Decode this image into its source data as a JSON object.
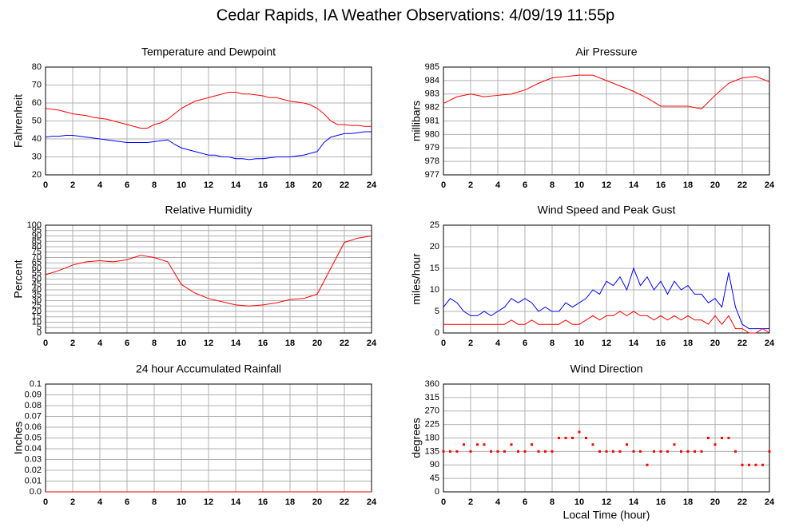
{
  "title": "Cedar Rapids, IA Weather Observations: 4/09/19 11:55p",
  "chart_data": [
    {
      "type": "line",
      "title": "Temperature and Dewpoint",
      "y_label": "Fahrenheit",
      "x": [
        0,
        0.5,
        1,
        1.5,
        2,
        2.5,
        3,
        3.5,
        4,
        4.5,
        5,
        5.5,
        6,
        6.5,
        7,
        7.5,
        8,
        8.5,
        9,
        9.5,
        10,
        10.5,
        11,
        11.5,
        12,
        12.5,
        13,
        13.5,
        14,
        14.5,
        15,
        15.5,
        16,
        16.5,
        17,
        17.5,
        18,
        18.5,
        19,
        19.5,
        20,
        20.5,
        21,
        21.5,
        22,
        22.5,
        23,
        23.5,
        24
      ],
      "series": [
        {
          "color": "#ff0000",
          "values": [
            57,
            56.5,
            56,
            55,
            54,
            53.5,
            53,
            52,
            51.5,
            51,
            50,
            49,
            48,
            47,
            46,
            46,
            48,
            49,
            51,
            54,
            57,
            59,
            61,
            62,
            63,
            64,
            65,
            66,
            66,
            65,
            65,
            64.5,
            64,
            63,
            63,
            62,
            61,
            60.5,
            60,
            59,
            57,
            54,
            50,
            48,
            48,
            47.5,
            47.5,
            47,
            47
          ]
        },
        {
          "color": "#0000ff",
          "values": [
            41,
            41.5,
            41.5,
            42,
            42,
            41.5,
            41,
            40.5,
            40,
            39.5,
            39,
            38.5,
            38,
            38,
            38,
            38,
            38.5,
            39,
            39.5,
            37,
            35,
            34,
            33,
            32,
            31,
            31,
            30,
            30,
            29,
            29,
            28.5,
            29,
            29,
            29.5,
            30,
            30,
            30,
            30.5,
            31,
            32,
            33,
            38,
            41,
            42,
            43,
            43,
            43.5,
            44,
            44
          ]
        }
      ],
      "xlim": [
        0,
        24
      ],
      "xticks": [
        0,
        2,
        4,
        6,
        8,
        10,
        12,
        14,
        16,
        18,
        20,
        22,
        24
      ],
      "ylim": [
        20,
        80
      ],
      "yticks": [
        20,
        30,
        40,
        50,
        60,
        70,
        80
      ],
      "grid": true
    },
    {
      "type": "line",
      "title": "Air Pressure",
      "y_label": "millibars",
      "x": [
        0,
        1,
        2,
        3,
        4,
        5,
        6,
        7,
        8,
        9,
        10,
        11,
        12,
        13,
        14,
        15,
        16,
        17,
        18,
        19,
        20,
        21,
        22,
        23,
        24
      ],
      "series": [
        {
          "color": "#ff0000",
          "values": [
            982.3,
            982.8,
            983,
            982.8,
            982.9,
            983,
            983.3,
            983.8,
            984.2,
            984.3,
            984.4,
            984.4,
            984,
            983.6,
            983.2,
            982.7,
            982.1,
            982.1,
            982.1,
            981.9,
            982.9,
            983.8,
            984.2,
            984.3,
            983.9
          ]
        }
      ],
      "xlim": [
        0,
        24
      ],
      "xticks": [
        0,
        2,
        4,
        6,
        8,
        10,
        12,
        14,
        16,
        18,
        20,
        22,
        24
      ],
      "ylim": [
        977,
        985
      ],
      "yticks": [
        977,
        978,
        979,
        980,
        981,
        982,
        983,
        984,
        985
      ],
      "grid": true
    },
    {
      "type": "line",
      "title": "Relative Humidity",
      "y_label": "Percent",
      "x": [
        0,
        1,
        2,
        3,
        4,
        5,
        6,
        7,
        8,
        9,
        10,
        11,
        12,
        13,
        14,
        15,
        16,
        17,
        18,
        19,
        20,
        21,
        22,
        23,
        24
      ],
      "series": [
        {
          "color": "#ff0000",
          "values": [
            54,
            58,
            63,
            66,
            67,
            66,
            68,
            72,
            70,
            66,
            45,
            37,
            32,
            29,
            26,
            25,
            26,
            28,
            31,
            32,
            36,
            60,
            84,
            88,
            90
          ]
        }
      ],
      "xlim": [
        0,
        24
      ],
      "xticks": [
        0,
        2,
        4,
        6,
        8,
        10,
        12,
        14,
        16,
        18,
        20,
        22,
        24
      ],
      "ylim": [
        0,
        100
      ],
      "yticks": [
        0,
        5,
        10,
        15,
        20,
        25,
        30,
        35,
        40,
        45,
        50,
        55,
        60,
        65,
        70,
        75,
        80,
        85,
        90,
        95,
        100
      ],
      "grid": true
    },
    {
      "type": "line",
      "title": "Wind Speed and Peak Gust",
      "y_label": "miles/hour",
      "x": [
        0,
        0.5,
        1,
        1.5,
        2,
        2.5,
        3,
        3.5,
        4,
        4.5,
        5,
        5.5,
        6,
        6.5,
        7,
        7.5,
        8,
        8.5,
        9,
        9.5,
        10,
        10.5,
        11,
        11.5,
        12,
        12.5,
        13,
        13.5,
        14,
        14.5,
        15,
        15.5,
        16,
        16.5,
        17,
        17.5,
        18,
        18.5,
        19,
        19.5,
        20,
        20.5,
        21,
        21.5,
        22,
        22.5,
        23,
        23.5,
        24
      ],
      "series": [
        {
          "color": "#0000ff",
          "values": [
            6,
            8,
            7,
            5,
            4,
            4,
            5,
            4,
            5,
            6,
            8,
            7,
            8,
            7,
            5,
            6,
            5,
            5,
            7,
            6,
            7,
            8,
            10,
            9,
            12,
            11,
            13,
            10,
            15,
            11,
            13,
            10,
            12,
            9,
            12,
            10,
            11,
            9,
            9,
            7,
            8,
            6,
            14,
            6,
            2,
            1,
            1,
            1,
            1
          ]
        },
        {
          "color": "#ff0000",
          "values": [
            2,
            2,
            2,
            2,
            2,
            2,
            2,
            2,
            2,
            2,
            3,
            2,
            2,
            3,
            2,
            2,
            2,
            2,
            3,
            2,
            2,
            3,
            4,
            3,
            4,
            4,
            5,
            4,
            5,
            4,
            4,
            3,
            4,
            3,
            4,
            3,
            4,
            3,
            3,
            2,
            4,
            2,
            4,
            1,
            1,
            0,
            0,
            1,
            0
          ]
        }
      ],
      "xlim": [
        0,
        24
      ],
      "xticks": [
        0,
        2,
        4,
        6,
        8,
        10,
        12,
        14,
        16,
        18,
        20,
        22,
        24
      ],
      "ylim": [
        0,
        25
      ],
      "yticks": [
        0,
        5,
        10,
        15,
        20,
        25
      ],
      "grid": true
    },
    {
      "type": "line",
      "title": "24 hour Accumulated Rainfall",
      "y_label": "Inches",
      "x": [
        0,
        24
      ],
      "series": [
        {
          "color": "#ff0000",
          "values": [
            0,
            0
          ]
        }
      ],
      "xlim": [
        0,
        24
      ],
      "xticks": [
        0,
        2,
        4,
        6,
        8,
        10,
        12,
        14,
        16,
        18,
        20,
        22,
        24
      ],
      "ylim": [
        0,
        0.1
      ],
      "yticks": [
        {
          "value": 0,
          "label": "0.0"
        },
        0.01,
        0.02,
        0.03,
        0.04,
        0.05,
        0.06,
        0.07,
        0.08,
        0.09,
        0.1
      ],
      "grid": true
    },
    {
      "type": "scatter",
      "title": "Wind Direction",
      "y_label": "degrees",
      "x_label": "Local Time (hour)",
      "x": [
        0,
        0.5,
        1,
        1.5,
        2,
        2.5,
        3,
        3.5,
        4,
        4.5,
        5,
        5.5,
        6,
        6.5,
        7,
        7.5,
        8,
        8.5,
        9,
        9.5,
        10,
        10.5,
        11,
        11.5,
        12,
        12.5,
        13,
        13.5,
        14,
        14.5,
        15,
        15.5,
        16,
        16.5,
        17,
        17.5,
        18,
        18.5,
        19,
        19.5,
        20,
        20.5,
        21,
        21.5,
        22,
        22.5,
        23,
        23.5,
        24
      ],
      "series": [
        {
          "color": "#ff0000",
          "values": [
            135,
            135,
            135,
            158,
            135,
            158,
            158,
            135,
            135,
            135,
            158,
            135,
            135,
            158,
            135,
            135,
            135,
            180,
            180,
            180,
            200,
            180,
            158,
            135,
            135,
            135,
            135,
            158,
            135,
            135,
            90,
            135,
            135,
            135,
            158,
            135,
            135,
            135,
            135,
            180,
            158,
            180,
            180,
            135,
            90,
            90,
            90,
            90,
            135
          ]
        }
      ],
      "xlim": [
        0,
        24
      ],
      "xticks": [
        0,
        2,
        4,
        6,
        8,
        10,
        12,
        14,
        16,
        18,
        20,
        22,
        24
      ],
      "ylim": [
        0,
        360
      ],
      "yticks": [
        0,
        45,
        90,
        135,
        180,
        225,
        270,
        315,
        360
      ],
      "grid": true
    }
  ]
}
